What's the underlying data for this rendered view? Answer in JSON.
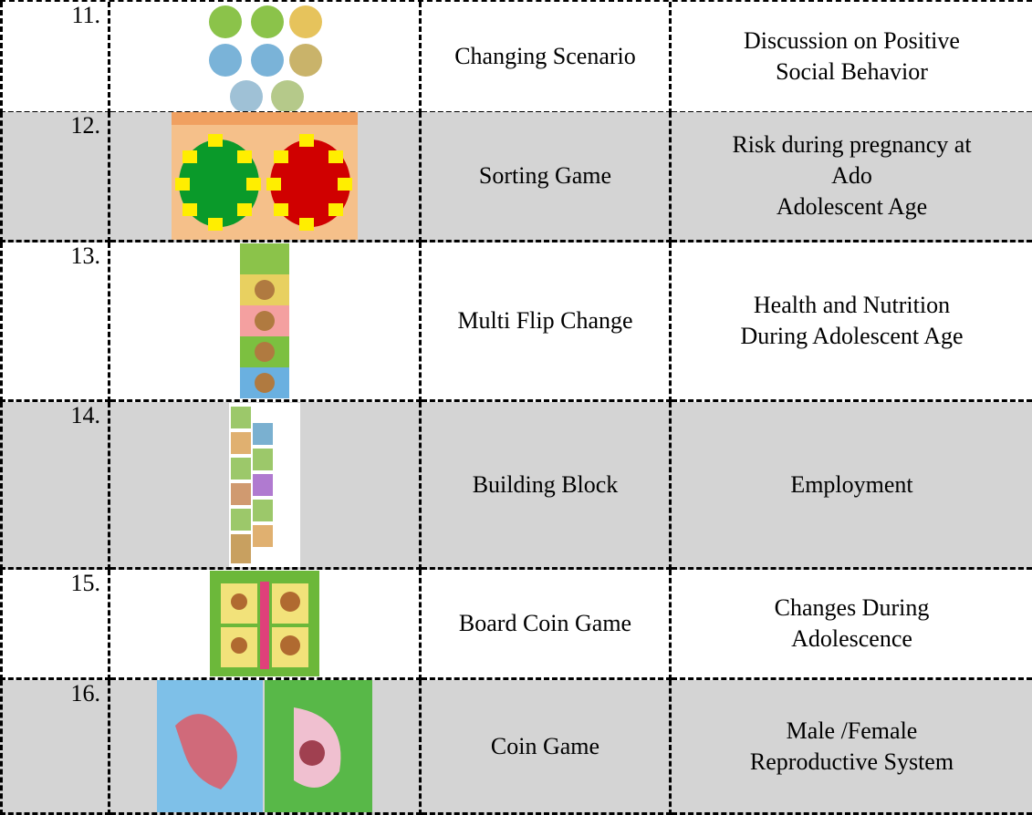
{
  "table": {
    "rows": [
      {
        "number": "11.",
        "game": "Changing Scenario",
        "topic": [
          "Discussion on Positive",
          "Social Behavior"
        ]
      },
      {
        "number": "12.",
        "game": "Sorting Game",
        "topic": [
          "Risk during pregnancy at",
          "Ado",
          "Adolescent Age"
        ]
      },
      {
        "number": "13.",
        "game": "Multi Flip Change",
        "topic": [
          "Health and Nutrition",
          "During Adolescent Age"
        ]
      },
      {
        "number": "14.",
        "game": "Building Block",
        "topic": [
          "Employment"
        ]
      },
      {
        "number": "15.",
        "game": "Board Coin Game",
        "topic": [
          "Changes During",
          "Adolescence"
        ]
      },
      {
        "number": "16.",
        "game": "Coin Game",
        "topic": [
          "Male /Female",
          "Reproductive System"
        ]
      }
    ]
  }
}
